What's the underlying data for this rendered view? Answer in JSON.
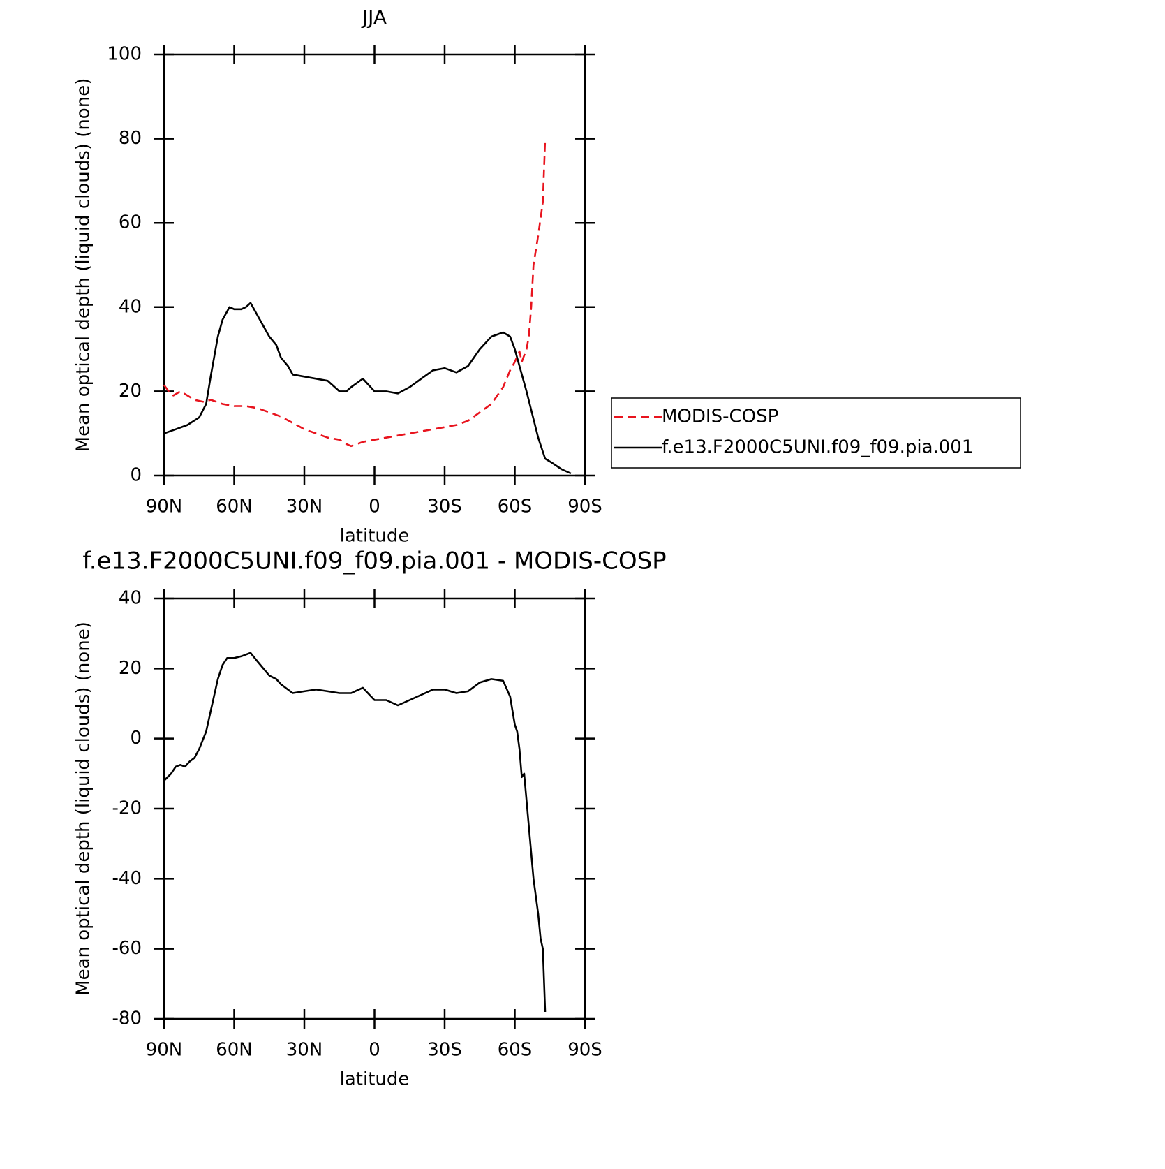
{
  "chart_data": [
    {
      "type": "line",
      "title": "JJA",
      "xlabel": "latitude",
      "ylabel": "Mean optical depth (liquid clouds) (none)",
      "xlim": [
        90,
        -90
      ],
      "ylim": [
        0,
        100
      ],
      "xticks": [
        {
          "value": 90,
          "label": "90N"
        },
        {
          "value": 60,
          "label": "60N"
        },
        {
          "value": 30,
          "label": "30N"
        },
        0,
        {
          "value": -30,
          "label": "30S"
        },
        {
          "value": -60,
          "label": "60S"
        },
        {
          "value": -90,
          "label": "90S"
        }
      ],
      "yticks": [
        0,
        20,
        40,
        60,
        80,
        100
      ],
      "legend": "outside right",
      "series": [
        {
          "name": "MODIS-COSP",
          "color": "#e8141e",
          "dash": true,
          "x": [
            90,
            88,
            86,
            83,
            80,
            77,
            73,
            70,
            65,
            60,
            55,
            50,
            45,
            40,
            35,
            30,
            25,
            20,
            15,
            12,
            10,
            5,
            0,
            -5,
            -10,
            -15,
            -20,
            -25,
            -30,
            -35,
            -40,
            -45,
            -50,
            -55,
            -58,
            -60,
            -62,
            -63,
            -65,
            -66,
            -67,
            -68,
            -70,
            -72,
            -73
          ],
          "values": [
            21.5,
            20,
            19,
            20,
            19,
            18,
            17.5,
            18,
            17,
            16.5,
            16.5,
            16,
            15,
            14,
            12.5,
            11,
            10,
            9,
            8.5,
            7.5,
            7,
            8,
            8.5,
            9,
            9.5,
            10,
            10.5,
            11,
            11.5,
            12,
            13,
            15,
            17,
            21,
            25,
            27,
            29.5,
            27,
            30,
            33,
            40,
            50,
            57,
            65,
            80
          ]
        },
        {
          "name": "f.e13.F2000C5UNI.f09_f09.pia.001",
          "color": "#000000",
          "dash": false,
          "x": [
            90,
            85,
            80,
            75,
            72,
            70,
            67,
            65,
            62,
            60,
            57,
            55,
            53,
            50,
            45,
            42,
            40,
            37,
            35,
            30,
            25,
            20,
            17,
            15,
            12,
            10,
            5,
            0,
            -5,
            -10,
            -15,
            -20,
            -25,
            -30,
            -35,
            -40,
            -45,
            -50,
            -55,
            -58,
            -60,
            -65,
            -70,
            -73,
            -76,
            -80,
            -82,
            -84
          ],
          "values": [
            10,
            11,
            12,
            13.8,
            17,
            23.7,
            33,
            37,
            40,
            39.5,
            39.5,
            40,
            41,
            38,
            33,
            31,
            28,
            26,
            24,
            23.5,
            23,
            22.5,
            21,
            20,
            20,
            21,
            23,
            20,
            20,
            19.5,
            21,
            23,
            25,
            25.5,
            24.5,
            26,
            30,
            33,
            34,
            33,
            30,
            20,
            9,
            4,
            3,
            1.5,
            1,
            0.5
          ]
        }
      ]
    },
    {
      "type": "line",
      "title": "f.e13.F2000C5UNI.f09_f09.pia.001 - MODIS-COSP",
      "xlabel": "latitude",
      "ylabel": "Mean optical depth (liquid clouds) (none)",
      "xlim": [
        90,
        -90
      ],
      "ylim": [
        -80,
        40
      ],
      "xticks": [
        {
          "value": 90,
          "label": "90N"
        },
        {
          "value": 60,
          "label": "60N"
        },
        {
          "value": 30,
          "label": "30N"
        },
        0,
        {
          "value": -30,
          "label": "30S"
        },
        {
          "value": -60,
          "label": "60S"
        },
        {
          "value": -90,
          "label": "90S"
        }
      ],
      "yticks": [
        -80,
        -60,
        -40,
        -20,
        0,
        20,
        40
      ],
      "series": [
        {
          "color": "#000000",
          "dash": false,
          "x": [
            90,
            87,
            85,
            83,
            81,
            79,
            77,
            75,
            72,
            70,
            67,
            65,
            63,
            60,
            57,
            53,
            50,
            45,
            42,
            40,
            35,
            30,
            25,
            20,
            15,
            10,
            5,
            0,
            -5,
            -10,
            -15,
            -20,
            -25,
            -30,
            -35,
            -40,
            -45,
            -50,
            -55,
            -58,
            -60,
            -61,
            -62,
            -63,
            -64,
            -66,
            -68,
            -70,
            -71,
            -72,
            -73
          ],
          "values": [
            -12,
            -10,
            -8,
            -7.5,
            -8,
            -6.5,
            -5.5,
            -3,
            2,
            8,
            17,
            21,
            23,
            23,
            23.5,
            24.5,
            22,
            18,
            17,
            15.5,
            13,
            13.5,
            14,
            13.5,
            13,
            13,
            14.5,
            11,
            11,
            9.5,
            11,
            12.5,
            14,
            14,
            13,
            13.5,
            16,
            17,
            16.5,
            12,
            4,
            2,
            -3,
            -11,
            -10,
            -25,
            -40,
            -50,
            -57,
            -60,
            -78
          ]
        }
      ]
    }
  ]
}
